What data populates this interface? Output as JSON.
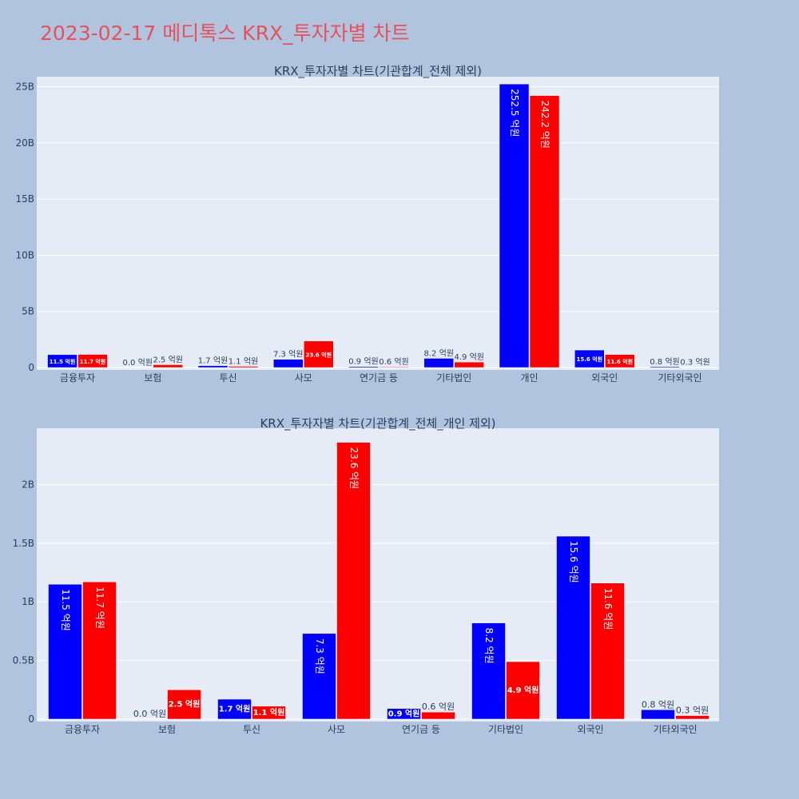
{
  "page": {
    "title": "2023-02-17 메디톡스 KRX_투자자별 차트"
  },
  "colors": {
    "buy": "#0000ff",
    "sell": "#ff0000",
    "plot_bg": "#e5ecf6",
    "page_bg": "#b0c4de",
    "title": "#e8505b"
  },
  "chart_data": [
    {
      "type": "bar",
      "title": "KRX_투자자별 차트(기관합계_전체 제외)",
      "categories": [
        "금융투자",
        "보험",
        "투신",
        "사모",
        "연기금 등",
        "기타법인",
        "개인",
        "외국인",
        "기타외국인"
      ],
      "series": [
        {
          "values": [
            1.15,
            0.0,
            0.17,
            0.73,
            0.09,
            0.82,
            25.25,
            1.56,
            0.08
          ],
          "labels": [
            "11.5 억원",
            "0.0 억원",
            "1.7 억원",
            "7.3 억원",
            "0.9 억원",
            "8.2 억원",
            "252.5 억원",
            "15.6 억원",
            "0.8 억원"
          ]
        },
        {
          "values": [
            1.17,
            0.25,
            0.11,
            2.36,
            0.06,
            0.49,
            24.22,
            1.16,
            0.03
          ],
          "labels": [
            "11.7 억원",
            "2.5 억원",
            "1.1 억원",
            "23.6 억원",
            "0.6 억원",
            "4.9 억원",
            "242.2 억원",
            "11.6 억원",
            "0.3 억원"
          ]
        }
      ],
      "ylim": [
        0,
        25.9
      ],
      "yticks": [
        0,
        5,
        10,
        15,
        20,
        25
      ],
      "ytick_labels": [
        "0",
        "5B",
        "10B",
        "15B",
        "20B",
        "25B"
      ],
      "grid": true,
      "xlabel": "",
      "ylabel": ""
    },
    {
      "type": "bar",
      "title": "KRX_투자자별 차트(기관합계_전체_개인 제외)",
      "categories": [
        "금융투자",
        "보험",
        "투신",
        "사모",
        "연기금 등",
        "기타법인",
        "외국인",
        "기타외국인"
      ],
      "series": [
        {
          "values": [
            1.15,
            0.0,
            0.17,
            0.73,
            0.09,
            0.82,
            1.56,
            0.08
          ],
          "labels": [
            "11.5 억원",
            "0.0 억원",
            "1.7 억원",
            "7.3 억원",
            "0.9 억원",
            "8.2 억원",
            "15.6 억원",
            "0.8 억원"
          ]
        },
        {
          "values": [
            1.17,
            0.25,
            0.11,
            2.36,
            0.06,
            0.49,
            1.16,
            0.03
          ],
          "labels": [
            "11.7 억원",
            "2.5 억원",
            "1.1 억원",
            "23.6 억원",
            "0.6 억원",
            "4.9 억원",
            "11.6 억원",
            "0.3 억원"
          ]
        }
      ],
      "ylim": [
        0,
        2.48
      ],
      "yticks": [
        0,
        0.5,
        1,
        1.5,
        2
      ],
      "ytick_labels": [
        "0",
        "0.5B",
        "1B",
        "1.5B",
        "2B"
      ],
      "grid": true,
      "xlabel": "",
      "ylabel": ""
    }
  ]
}
